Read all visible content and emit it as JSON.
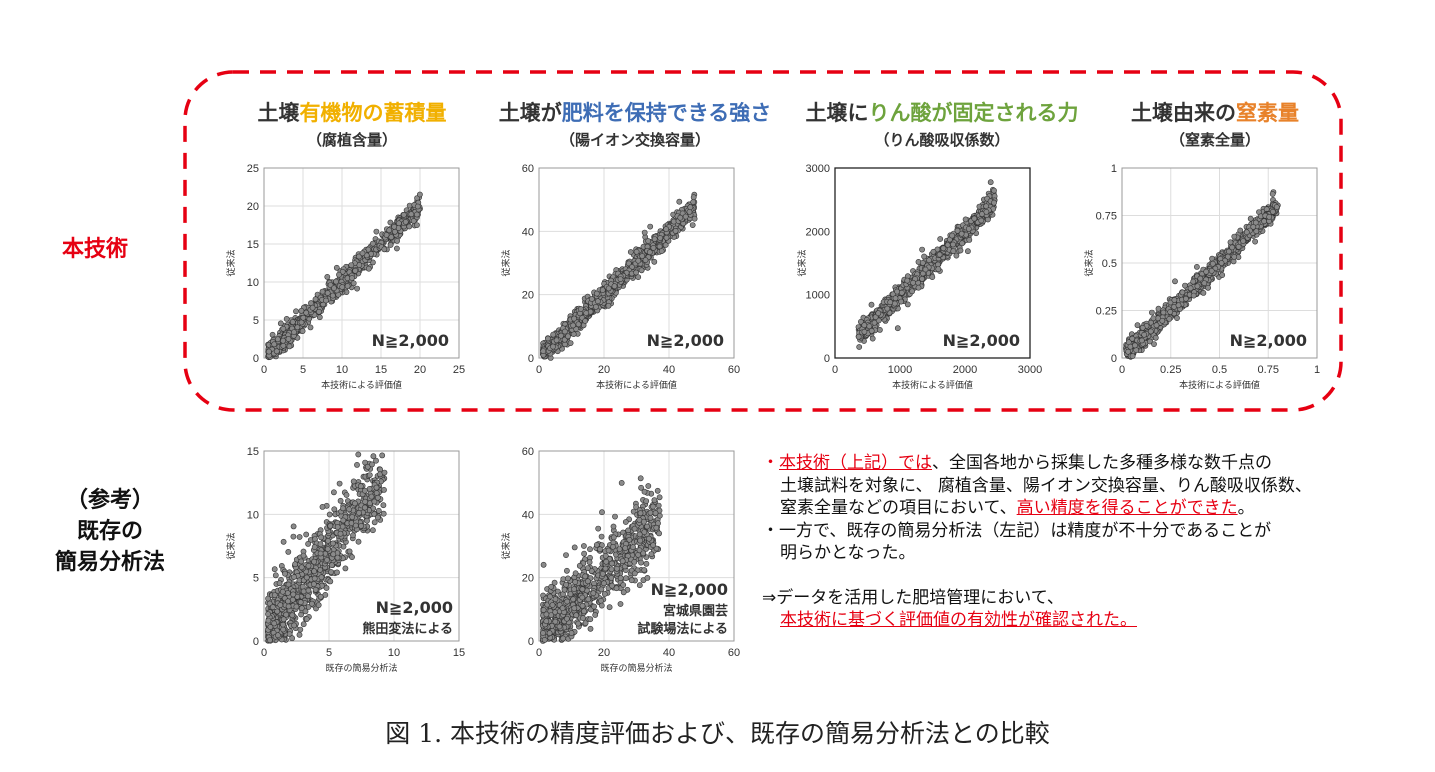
{
  "row_labels": {
    "main": "本技術",
    "reference_1": "（参考）",
    "reference_2": "既存の",
    "reference_3": "簡易分析法"
  },
  "titles": [
    {
      "prefix": "土壌",
      "highlight": "有機物の蓄積量",
      "suffix": "",
      "sub": "（腐植含量）",
      "color": "#f1b000"
    },
    {
      "prefix": "土壌が",
      "highlight": "肥料を保持できる強さ",
      "suffix": "",
      "sub": "（陽イオン交換容量）",
      "color": "#3e6db5"
    },
    {
      "prefix": "土壌に",
      "highlight": "りん酸が固定される力",
      "suffix": "",
      "sub": "（りん酸吸収係数）",
      "color": "#6ea33d"
    },
    {
      "prefix": "土壌由来の",
      "highlight": "窒素量",
      "suffix": "",
      "sub": "（窒素全量）",
      "color": "#e8822a"
    }
  ],
  "notes": {
    "line1_bullet": "・",
    "line1_red": "本技術（上記）では",
    "line1_rest": "、全国各地から採集した多種多様な数千点の",
    "line2": "土壌試料を対象に、 腐植含量、陽イオン交換容量、りん酸吸収係数、",
    "line3_pre": "窒素全量などの項目において、",
    "line3_red": "高い精度を得ることができた",
    "line3_post": "。",
    "line4": "・一方で、既存の簡易分析法（左記）は精度が不十分であることが",
    "line5": "明らかとなった。",
    "line6": "⇒データを活用した肥培管理において、",
    "line7_red": "本技術に基づく評価値の有効性が確認された。"
  },
  "caption": "図 1. 本技術の精度評価および、既存の簡易分析法との比較",
  "chart_data": [
    {
      "type": "scatter",
      "panel": "humus",
      "xlabel": "本技術による評価値",
      "ylabel": "従来法",
      "xlim": [
        0,
        25
      ],
      "ylim": [
        0,
        25
      ],
      "xticks": [
        "0",
        "5",
        "10",
        "15",
        "20",
        "25"
      ],
      "yticks": [
        "0",
        "5",
        "10",
        "15",
        "20",
        "25"
      ],
      "annotation": "N≧2,000",
      "annotation2": "",
      "grid": true,
      "relationship": "tight_linear"
    },
    {
      "type": "scatter",
      "panel": "cec",
      "xlabel": "本技術による評価値",
      "ylabel": "従来法",
      "xlim": [
        0,
        60
      ],
      "ylim": [
        0,
        60
      ],
      "xticks": [
        "0",
        "20",
        "40",
        "60"
      ],
      "yticks": [
        "0",
        "20",
        "40",
        "60"
      ],
      "annotation": "N≧2,000",
      "annotation2": "",
      "grid": true,
      "relationship": "tight_linear"
    },
    {
      "type": "scatter",
      "panel": "phosphate",
      "xlabel": "本技術による評価値",
      "ylabel": "従来法",
      "xlim": [
        0,
        3000
      ],
      "ylim": [
        0,
        3000
      ],
      "xticks": [
        "0",
        "1000",
        "2000",
        "3000"
      ],
      "yticks": [
        "0",
        "1000",
        "2000",
        "3000"
      ],
      "annotation": "N≧2,000",
      "annotation2": "",
      "grid": false,
      "relationship": "tight_linear"
    },
    {
      "type": "scatter",
      "panel": "nitrogen",
      "xlabel": "本技術による評価値",
      "ylabel": "従来法",
      "xlim": [
        0,
        1
      ],
      "ylim": [
        0,
        1
      ],
      "xticks": [
        "0",
        "0.25",
        "0.5",
        "0.75",
        "1"
      ],
      "yticks": [
        "0",
        "0.25",
        "0.5",
        "0.75",
        "1"
      ],
      "annotation": "N≧2,000",
      "annotation2": "",
      "grid": true,
      "relationship": "tight_linear"
    },
    {
      "type": "scatter",
      "panel": "humus_ref",
      "xlabel": "既存の簡易分析法",
      "ylabel": "従来法",
      "xlim": [
        0,
        15
      ],
      "ylim": [
        0,
        15
      ],
      "xticks": [
        "0",
        "5",
        "10",
        "15"
      ],
      "yticks": [
        "0",
        "5",
        "10",
        "15"
      ],
      "annotation": "N≧2,000",
      "annotation2": "熊田変法による",
      "grid": true,
      "relationship": "wide_scatter"
    },
    {
      "type": "scatter",
      "panel": "cec_ref",
      "xlabel": "既存の簡易分析法",
      "ylabel": "従来法",
      "xlim": [
        0,
        60
      ],
      "ylim": [
        0,
        60
      ],
      "xticks": [
        "0",
        "20",
        "40",
        "60"
      ],
      "yticks": [
        "0",
        "20",
        "40",
        "60"
      ],
      "annotation": "N≧2,000",
      "annotation2": "宮城県園芸",
      "annotation3": "試験場法による",
      "grid": true,
      "relationship": "wide_scatter"
    }
  ]
}
